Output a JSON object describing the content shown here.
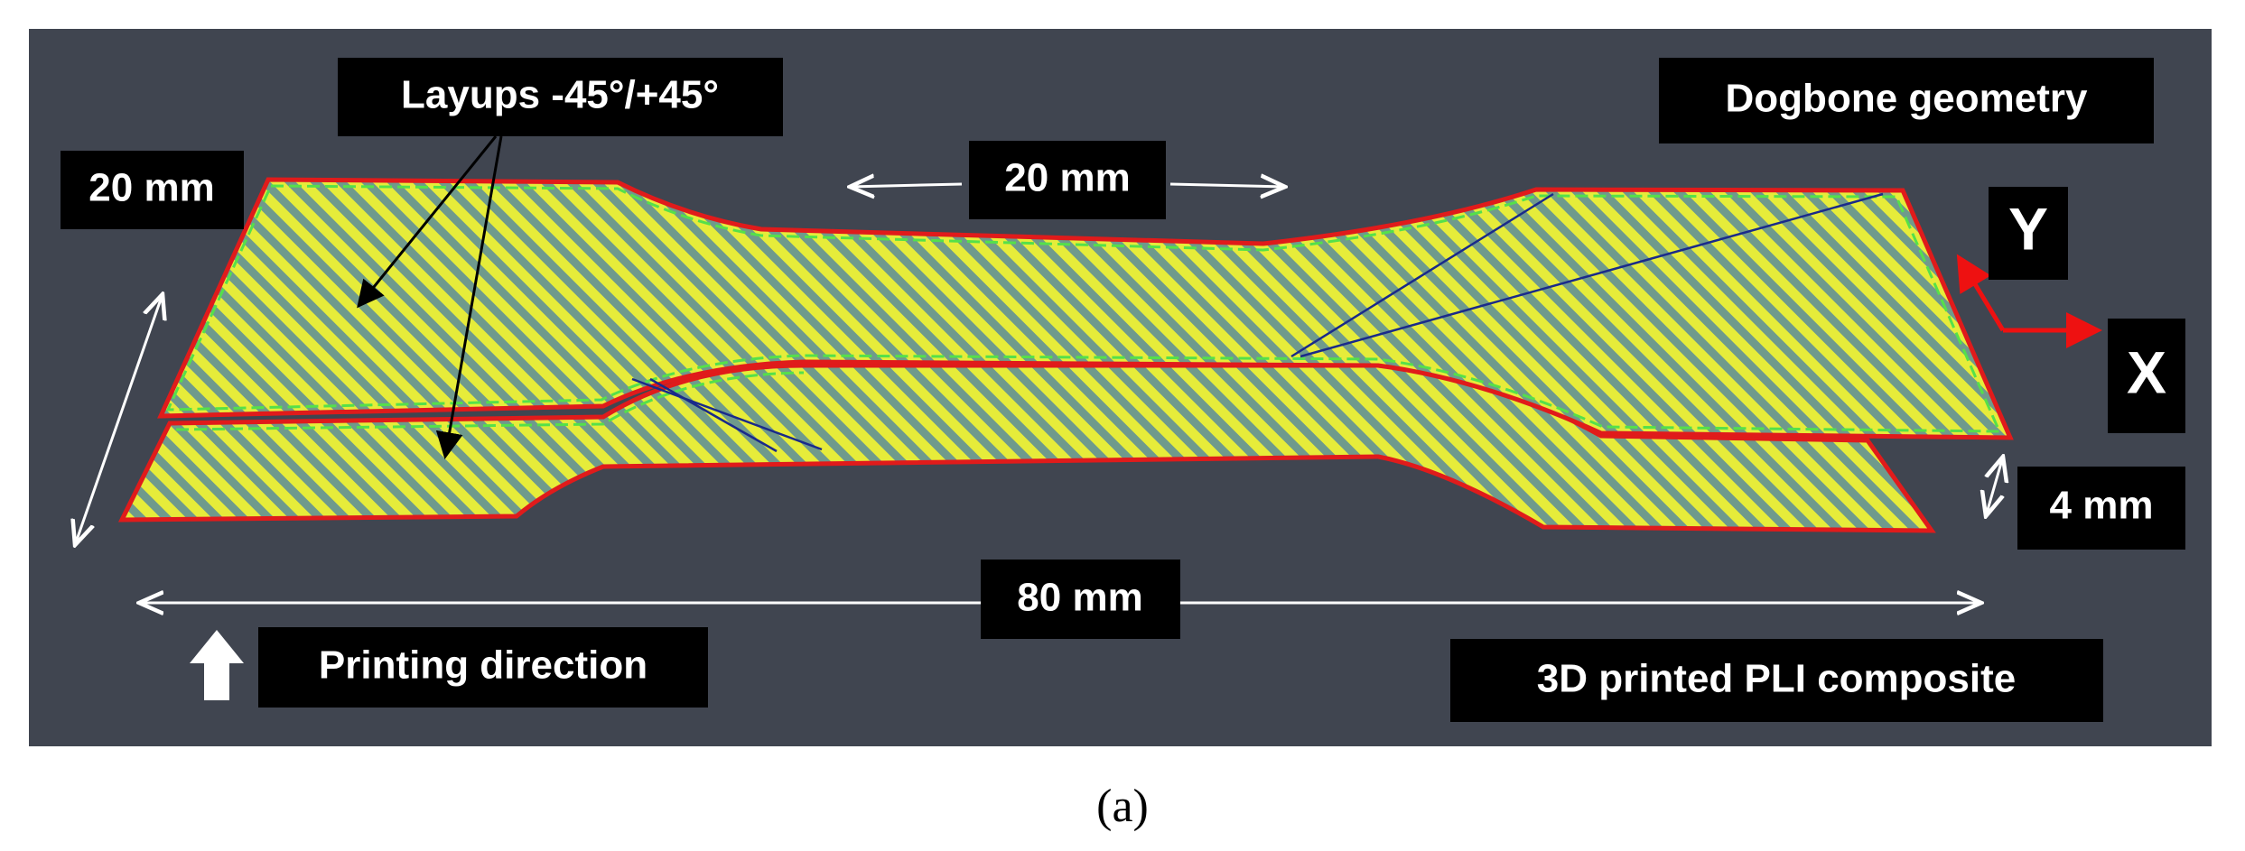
{
  "labels": {
    "layups": "Layups -45°/+45°",
    "geometry": "Dogbone geometry",
    "width_left": "20 mm",
    "gauge_length": "20 mm",
    "axis_y": "Y",
    "axis_x": "X",
    "thickness": "4 mm",
    "total_length": "80 mm",
    "printing_direction": "Printing direction",
    "material": "3D printed PLI composite"
  },
  "caption": "(a)"
}
